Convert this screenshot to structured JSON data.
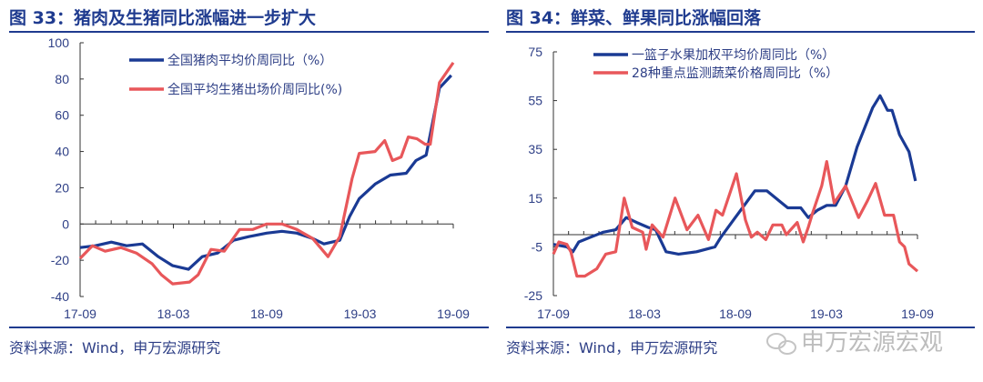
{
  "colors": {
    "blue": "#1a3a94",
    "red": "#e8575a",
    "rule": "#1f3b8f"
  },
  "source": "资料来源：Wind，申万宏源研究",
  "watermark": "申万宏源宏观",
  "chart_data": [
    {
      "type": "line",
      "title": "图 33：猪肉及生猪同比涨幅进一步扩大",
      "ylim": [
        -40,
        100
      ],
      "yticks": [
        100,
        80,
        60,
        40,
        20,
        0,
        -20,
        -40
      ],
      "xticks": [
        "17-09",
        "18-03",
        "18-09",
        "19-03",
        "19-09"
      ],
      "xrange": [
        "2017-09-01",
        "2019-09-01"
      ],
      "series": [
        {
          "name": "全国猪肉平均价周同比（%）",
          "color": "blue",
          "points": [
            [
              "2017-09-01",
              -13
            ],
            [
              "2017-10-01",
              -12
            ],
            [
              "2017-11-01",
              -10
            ],
            [
              "2017-12-01",
              -12
            ],
            [
              "2018-01-01",
              -11
            ],
            [
              "2018-02-01",
              -18
            ],
            [
              "2018-03-01",
              -23
            ],
            [
              "2018-04-01",
              -25
            ],
            [
              "2018-04-28",
              -18
            ],
            [
              "2018-05-28",
              -16
            ],
            [
              "2018-06-28",
              -9
            ],
            [
              "2018-07-28",
              -7
            ],
            [
              "2018-09-01",
              -5
            ],
            [
              "2018-10-01",
              -4
            ],
            [
              "2018-10-30",
              -5
            ],
            [
              "2018-11-30",
              -8
            ],
            [
              "2018-12-22",
              -11
            ],
            [
              "2019-01-22",
              -9
            ],
            [
              "2019-02-10",
              4
            ],
            [
              "2019-03-01",
              14
            ],
            [
              "2019-04-01",
              22
            ],
            [
              "2019-05-01",
              27
            ],
            [
              "2019-06-01",
              28
            ],
            [
              "2019-06-20",
              35
            ],
            [
              "2019-07-10",
              38
            ],
            [
              "2019-08-05",
              75
            ],
            [
              "2019-08-28",
              82
            ]
          ]
        },
        {
          "name": "全国平均生猪出场价周同比(%)",
          "color": "red",
          "points": [
            [
              "2017-09-01",
              -19
            ],
            [
              "2017-09-25",
              -12
            ],
            [
              "2017-10-20",
              -15
            ],
            [
              "2017-11-20",
              -13
            ],
            [
              "2017-12-20",
              -16
            ],
            [
              "2018-01-20",
              -22
            ],
            [
              "2018-02-07",
              -28
            ],
            [
              "2018-03-01",
              -33
            ],
            [
              "2018-04-03",
              -32
            ],
            [
              "2018-04-20",
              -28
            ],
            [
              "2018-05-15",
              -14
            ],
            [
              "2018-06-10",
              -15
            ],
            [
              "2018-07-10",
              -3
            ],
            [
              "2018-08-05",
              -3
            ],
            [
              "2018-09-01",
              0
            ],
            [
              "2018-10-01",
              0
            ],
            [
              "2018-10-30",
              -3
            ],
            [
              "2018-11-30",
              -8
            ],
            [
              "2018-12-30",
              -18
            ],
            [
              "2019-01-22",
              -7
            ],
            [
              "2019-02-15",
              25
            ],
            [
              "2019-03-01",
              39
            ],
            [
              "2019-04-01",
              40
            ],
            [
              "2019-04-20",
              46
            ],
            [
              "2019-05-05",
              35
            ],
            [
              "2019-05-22",
              37
            ],
            [
              "2019-06-05",
              48
            ],
            [
              "2019-06-22",
              47
            ],
            [
              "2019-07-08",
              44
            ],
            [
              "2019-07-18",
              44
            ],
            [
              "2019-08-05",
              78
            ],
            [
              "2019-09-01",
              89
            ]
          ]
        }
      ]
    },
    {
      "type": "line",
      "title": "图 34：鲜菜、鲜果同比涨幅回落",
      "ylim": [
        -25,
        75
      ],
      "yticks": [
        75,
        55,
        35,
        15,
        -5,
        -25
      ],
      "xticks": [
        "17-09",
        "18-03",
        "18-09",
        "19-03",
        "19-09"
      ],
      "xrange": [
        "2017-09-01",
        "2019-09-01"
      ],
      "series": [
        {
          "name": "一篮子水果加权平均价周同比（%）",
          "color": "blue",
          "points": [
            [
              "2017-09-01",
              -4
            ],
            [
              "2017-09-28",
              -5
            ],
            [
              "2017-10-10",
              -7
            ],
            [
              "2017-10-22",
              -3
            ],
            [
              "2017-11-15",
              -1
            ],
            [
              "2017-12-10",
              1
            ],
            [
              "2018-01-04",
              2
            ],
            [
              "2018-01-25",
              7
            ],
            [
              "2018-02-15",
              5
            ],
            [
              "2018-03-10",
              3
            ],
            [
              "2018-03-25",
              2
            ],
            [
              "2018-04-15",
              -7
            ],
            [
              "2018-05-10",
              -8
            ],
            [
              "2018-06-15",
              -7
            ],
            [
              "2018-07-22",
              -5
            ],
            [
              "2018-08-03",
              -1
            ],
            [
              "2018-08-28",
              6
            ],
            [
              "2018-09-15",
              11
            ],
            [
              "2018-10-10",
              18
            ],
            [
              "2018-11-03",
              18
            ],
            [
              "2018-12-03",
              13
            ],
            [
              "2018-12-15",
              11
            ],
            [
              "2019-01-10",
              11
            ],
            [
              "2019-01-25",
              7
            ],
            [
              "2019-02-12",
              10
            ],
            [
              "2019-03-03",
              12
            ],
            [
              "2019-03-21",
              12
            ],
            [
              "2019-04-10",
              20
            ],
            [
              "2019-05-03",
              36
            ],
            [
              "2019-06-03",
              52
            ],
            [
              "2019-06-18",
              57
            ],
            [
              "2019-07-03",
              51
            ],
            [
              "2019-07-12",
              51
            ],
            [
              "2019-07-27",
              41
            ],
            [
              "2019-08-15",
              34
            ],
            [
              "2019-08-28",
              22
            ]
          ]
        },
        {
          "name": "28种重点监测蔬菜价格周同比（%）",
          "color": "red",
          "points": [
            [
              "2017-09-01",
              -8
            ],
            [
              "2017-09-12",
              -3
            ],
            [
              "2017-09-28",
              -4
            ],
            [
              "2017-10-06",
              -7
            ],
            [
              "2017-10-18",
              -17
            ],
            [
              "2017-11-03",
              -17
            ],
            [
              "2017-11-27",
              -14
            ],
            [
              "2017-12-15",
              -8
            ],
            [
              "2018-01-04",
              -7
            ],
            [
              "2018-01-21",
              15
            ],
            [
              "2018-02-06",
              3
            ],
            [
              "2018-02-27",
              1
            ],
            [
              "2018-03-06",
              -6
            ],
            [
              "2018-03-18",
              4
            ],
            [
              "2018-04-09",
              -1
            ],
            [
              "2018-05-03",
              15
            ],
            [
              "2018-05-27",
              2
            ],
            [
              "2018-06-18",
              8
            ],
            [
              "2018-07-09",
              -2
            ],
            [
              "2018-07-24",
              10
            ],
            [
              "2018-08-06",
              8
            ],
            [
              "2018-09-03",
              25
            ],
            [
              "2018-09-21",
              6
            ],
            [
              "2018-10-03",
              -1
            ],
            [
              "2018-10-15",
              1
            ],
            [
              "2018-11-01",
              -2
            ],
            [
              "2018-11-15",
              4
            ],
            [
              "2018-12-03",
              4
            ],
            [
              "2018-12-12",
              0
            ],
            [
              "2019-01-03",
              5
            ],
            [
              "2019-01-15",
              -3
            ],
            [
              "2019-01-25",
              3
            ],
            [
              "2019-02-03",
              9
            ],
            [
              "2019-02-21",
              20
            ],
            [
              "2019-03-03",
              30
            ],
            [
              "2019-03-18",
              13
            ],
            [
              "2019-04-10",
              20
            ],
            [
              "2019-05-06",
              7
            ],
            [
              "2019-05-24",
              14
            ],
            [
              "2019-06-09",
              21
            ],
            [
              "2019-06-27",
              8
            ],
            [
              "2019-07-15",
              8
            ],
            [
              "2019-07-27",
              -3
            ],
            [
              "2019-08-06",
              -5
            ],
            [
              "2019-08-15",
              -12
            ],
            [
              "2019-09-01",
              -15
            ]
          ]
        }
      ]
    }
  ]
}
